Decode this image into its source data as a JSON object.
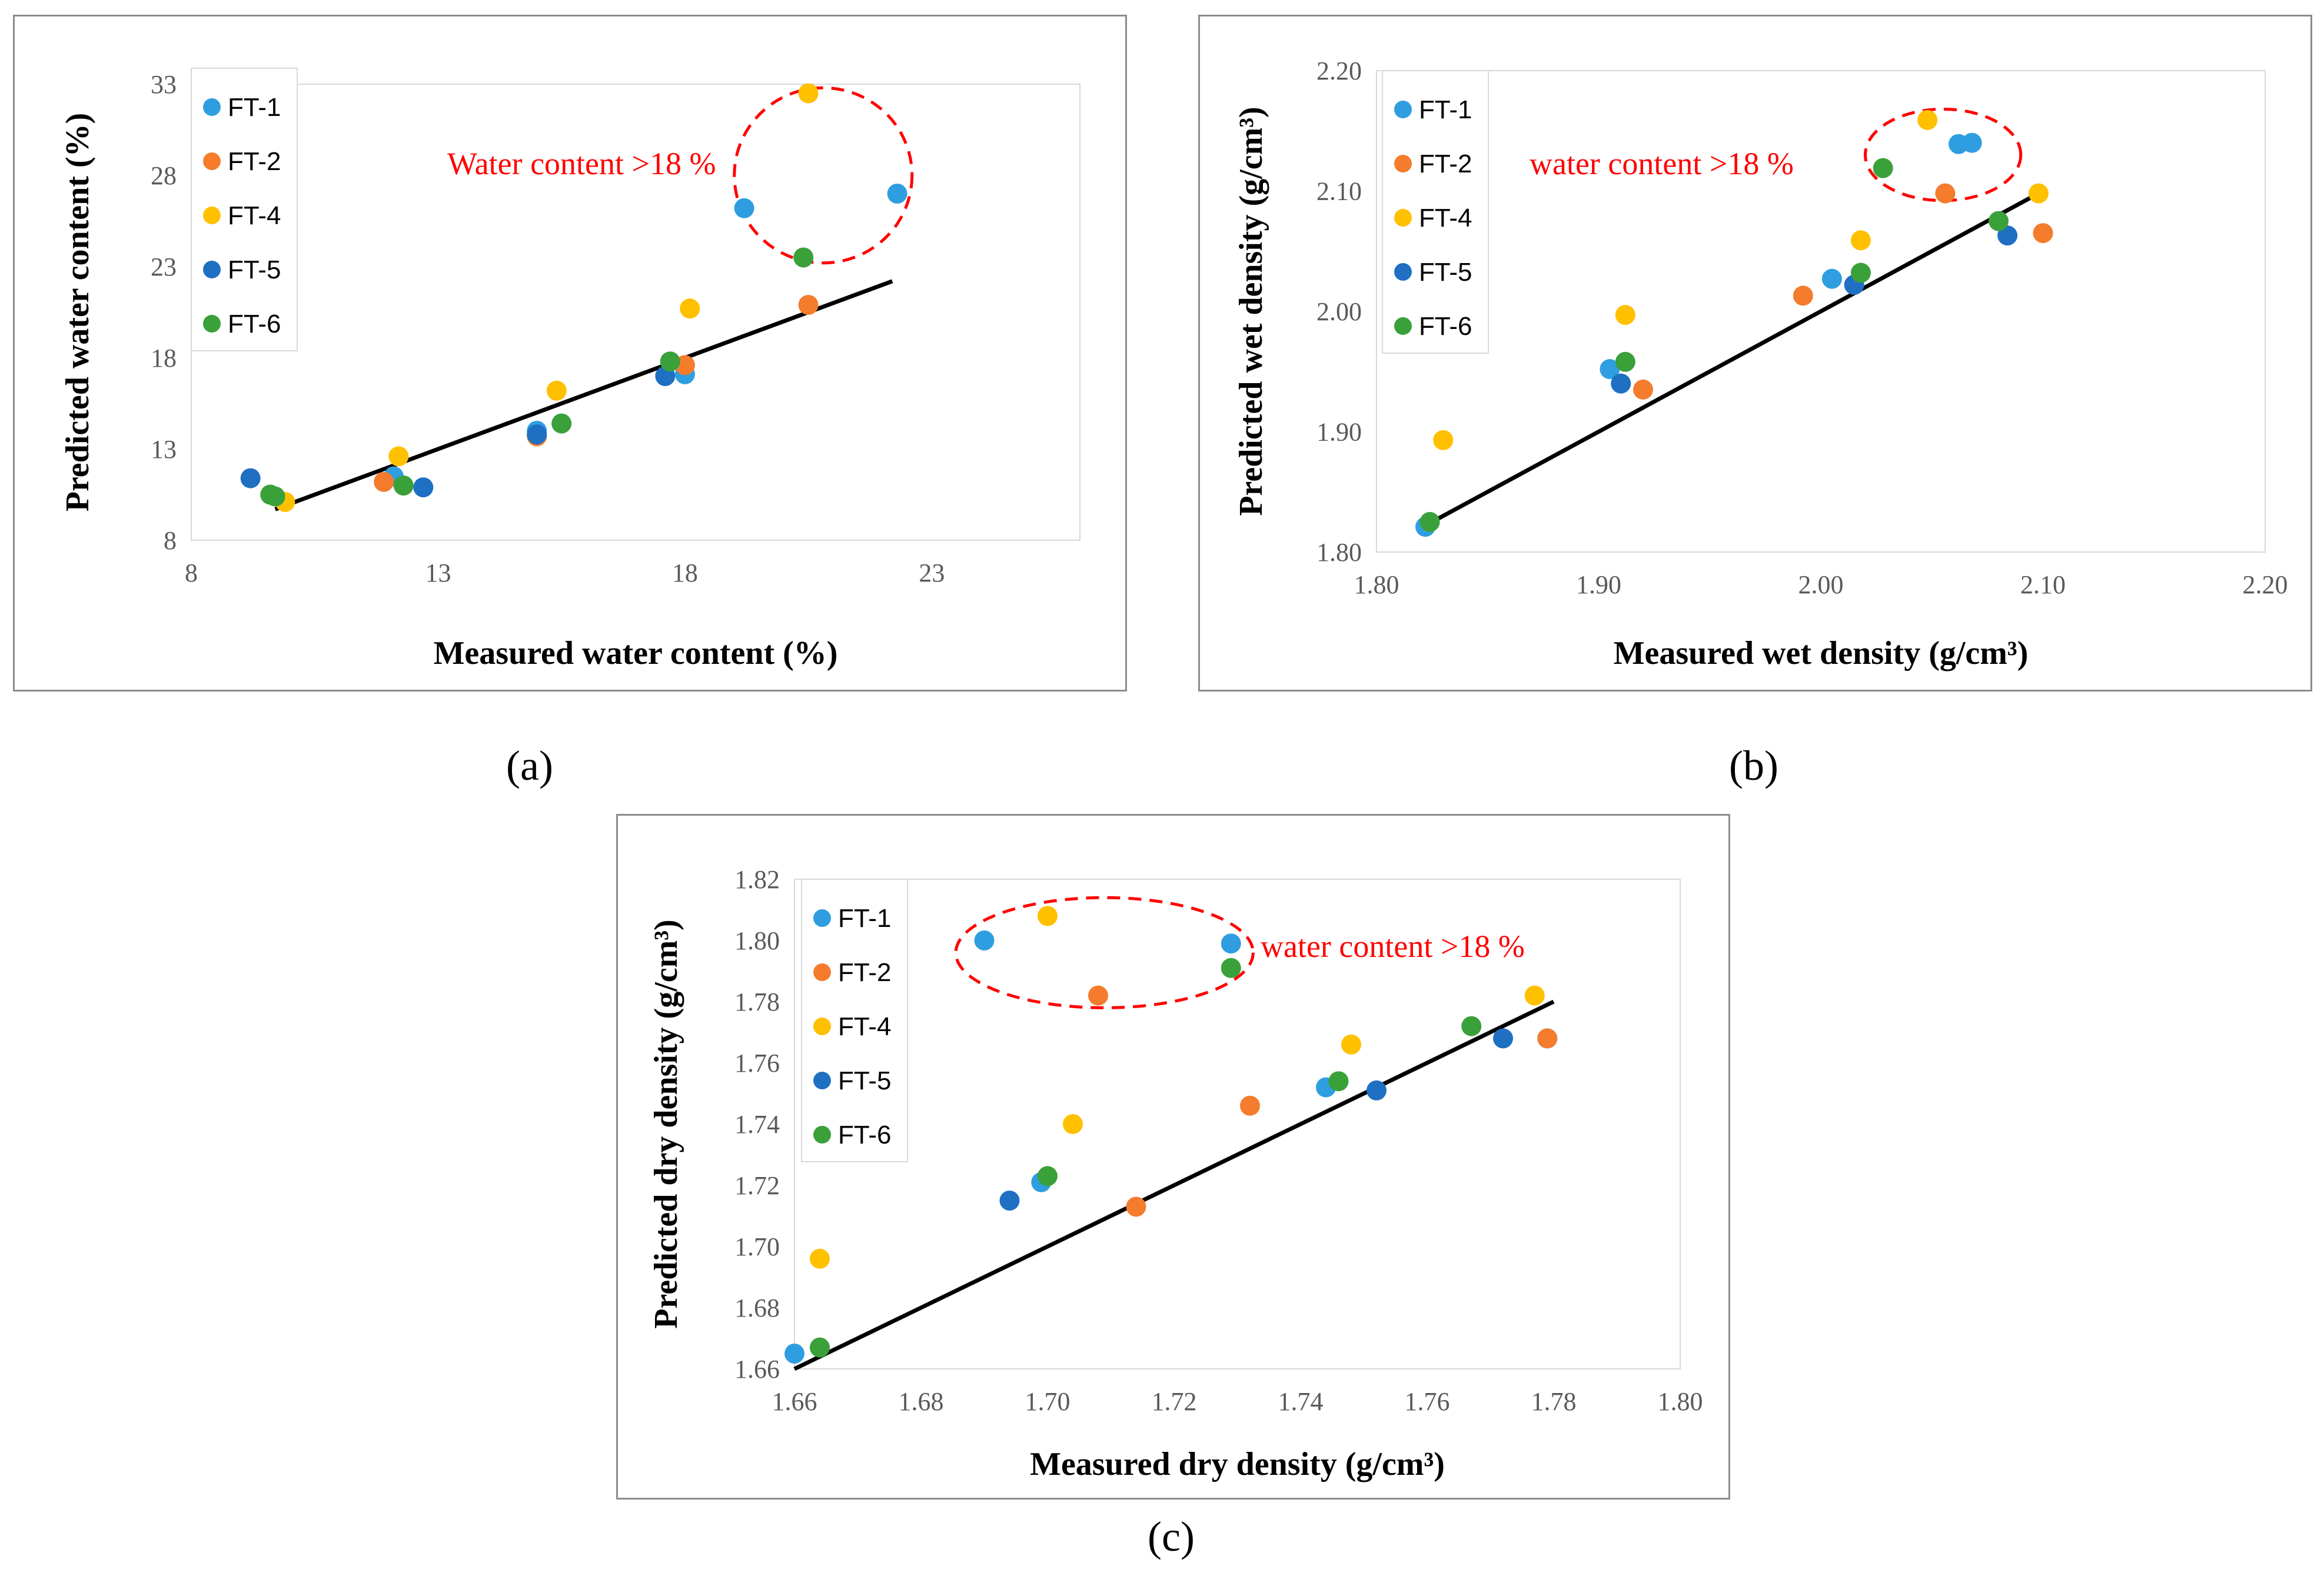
{
  "captions": {
    "a": "(a)",
    "b": "(b)",
    "c": "(c)"
  },
  "legend_colors": {
    "FT-1": "#2e9ee0",
    "FT-2": "#f47c2c",
    "FT-4": "#ffc000",
    "FT-5": "#1f6fc2",
    "FT-6": "#3aa03a"
  },
  "circle_color": "#ff0000",
  "fit_color": "#000000",
  "chart_data": [
    {
      "id": "a",
      "type": "scatter",
      "xlabel": "Measured water content (%)",
      "ylabel": "Predicted water content (%)",
      "xlim": [
        8,
        26
      ],
      "ylim": [
        8,
        33
      ],
      "xticks": [
        8,
        13,
        18,
        23
      ],
      "yticks": [
        8,
        13,
        18,
        23,
        28,
        33
      ],
      "tick_decimals": 0,
      "annotation": "Water content >18 %",
      "circle": {
        "cx": 20.8,
        "cy": 28.0,
        "rx": 1.8,
        "ry": 4.8
      },
      "fit_line": [
        [
          9.7,
          9.7
        ],
        [
          22.2,
          22.2
        ]
      ],
      "series": [
        {
          "name": "FT-1",
          "points": [
            [
              12.1,
              11.5
            ],
            [
              15.0,
              14.0
            ],
            [
              18.0,
              17.1
            ],
            [
              19.2,
              26.2
            ],
            [
              22.3,
              27.0
            ]
          ]
        },
        {
          "name": "FT-2",
          "points": [
            [
              11.9,
              11.2
            ],
            [
              15.0,
              13.7
            ],
            [
              18.0,
              17.6
            ],
            [
              20.5,
              20.9
            ]
          ]
        },
        {
          "name": "FT-4",
          "points": [
            [
              9.9,
              10.1
            ],
            [
              12.2,
              12.6
            ],
            [
              15.4,
              16.2
            ],
            [
              18.1,
              20.7
            ],
            [
              20.5,
              32.5
            ]
          ]
        },
        {
          "name": "FT-5",
          "points": [
            [
              9.2,
              11.4
            ],
            [
              12.7,
              10.9
            ],
            [
              15.0,
              13.8
            ],
            [
              17.6,
              17.0
            ]
          ]
        },
        {
          "name": "FT-6",
          "points": [
            [
              9.6,
              10.5
            ],
            [
              9.7,
              10.4
            ],
            [
              12.3,
              11.0
            ],
            [
              15.5,
              14.4
            ],
            [
              17.7,
              17.8
            ],
            [
              20.4,
              23.5
            ]
          ]
        }
      ]
    },
    {
      "id": "b",
      "type": "scatter",
      "xlabel": "Measured wet density (g/cm³)",
      "ylabel": "Predicted wet density (g/cm³)",
      "xlim": [
        1.8,
        2.2
      ],
      "ylim": [
        1.8,
        2.2
      ],
      "xticks": [
        1.8,
        1.9,
        2.0,
        2.1,
        2.2
      ],
      "yticks": [
        1.8,
        1.9,
        2.0,
        2.1,
        2.2
      ],
      "tick_decimals": 2,
      "annotation": "water content >18 %",
      "circle": {
        "cx": 2.055,
        "cy": 2.13,
        "rx": 0.035,
        "ry": 0.038
      },
      "fit_line": [
        [
          1.822,
          1.822
        ],
        [
          2.1,
          2.1
        ]
      ],
      "series": [
        {
          "name": "FT-1",
          "points": [
            [
              1.822,
              1.821
            ],
            [
              1.905,
              1.952
            ],
            [
              2.005,
              2.027
            ],
            [
              2.062,
              2.139
            ],
            [
              2.068,
              2.14
            ]
          ]
        },
        {
          "name": "FT-2",
          "points": [
            [
              1.92,
              1.935
            ],
            [
              1.992,
              2.013
            ],
            [
              2.056,
              2.098
            ],
            [
              2.1,
              2.065
            ]
          ]
        },
        {
          "name": "FT-4",
          "points": [
            [
              1.83,
              1.893
            ],
            [
              1.912,
              1.997
            ],
            [
              2.018,
              2.059
            ],
            [
              2.048,
              2.159
            ],
            [
              2.098,
              2.098
            ]
          ]
        },
        {
          "name": "FT-5",
          "points": [
            [
              1.91,
              1.94
            ],
            [
              2.015,
              2.022
            ],
            [
              2.084,
              2.063
            ]
          ]
        },
        {
          "name": "FT-6",
          "points": [
            [
              1.824,
              1.825
            ],
            [
              1.912,
              1.958
            ],
            [
              2.018,
              2.032
            ],
            [
              2.028,
              2.119
            ],
            [
              2.08,
              2.075
            ]
          ]
        }
      ]
    },
    {
      "id": "c",
      "type": "scatter",
      "xlabel": "Measured dry density (g/cm³)",
      "ylabel": "Predicted dry density (g/cm³)",
      "xlim": [
        1.66,
        1.8
      ],
      "ylim": [
        1.66,
        1.82
      ],
      "xticks": [
        1.66,
        1.68,
        1.7,
        1.72,
        1.74,
        1.76,
        1.78,
        1.8
      ],
      "yticks": [
        1.66,
        1.68,
        1.7,
        1.72,
        1.74,
        1.76,
        1.78,
        1.8,
        1.82
      ],
      "tick_decimals": 2,
      "annotation": "water content >18 %",
      "circle": {
        "cx": 1.709,
        "cy": 1.796,
        "rx": 0.0235,
        "ry": 0.018
      },
      "fit_line": [
        [
          1.66,
          1.66
        ],
        [
          1.78,
          1.78
        ]
      ],
      "series": [
        {
          "name": "FT-1",
          "points": [
            [
              1.66,
              1.665
            ],
            [
              1.69,
              1.8
            ],
            [
              1.699,
              1.721
            ],
            [
              1.729,
              1.799
            ],
            [
              1.744,
              1.752
            ],
            [
              1.779,
              1.768
            ]
          ]
        },
        {
          "name": "FT-2",
          "points": [
            [
              1.708,
              1.782
            ],
            [
              1.714,
              1.713
            ],
            [
              1.732,
              1.746
            ],
            [
              1.779,
              1.768
            ]
          ]
        },
        {
          "name": "FT-4",
          "points": [
            [
              1.664,
              1.696
            ],
            [
              1.7,
              1.808
            ],
            [
              1.704,
              1.74
            ],
            [
              1.748,
              1.766
            ],
            [
              1.777,
              1.782
            ]
          ]
        },
        {
          "name": "FT-5",
          "points": [
            [
              1.694,
              1.715
            ],
            [
              1.752,
              1.751
            ],
            [
              1.772,
              1.768
            ]
          ]
        },
        {
          "name": "FT-6",
          "points": [
            [
              1.664,
              1.667
            ],
            [
              1.7,
              1.723
            ],
            [
              1.729,
              1.791
            ],
            [
              1.746,
              1.754
            ],
            [
              1.767,
              1.772
            ]
          ]
        }
      ]
    }
  ]
}
